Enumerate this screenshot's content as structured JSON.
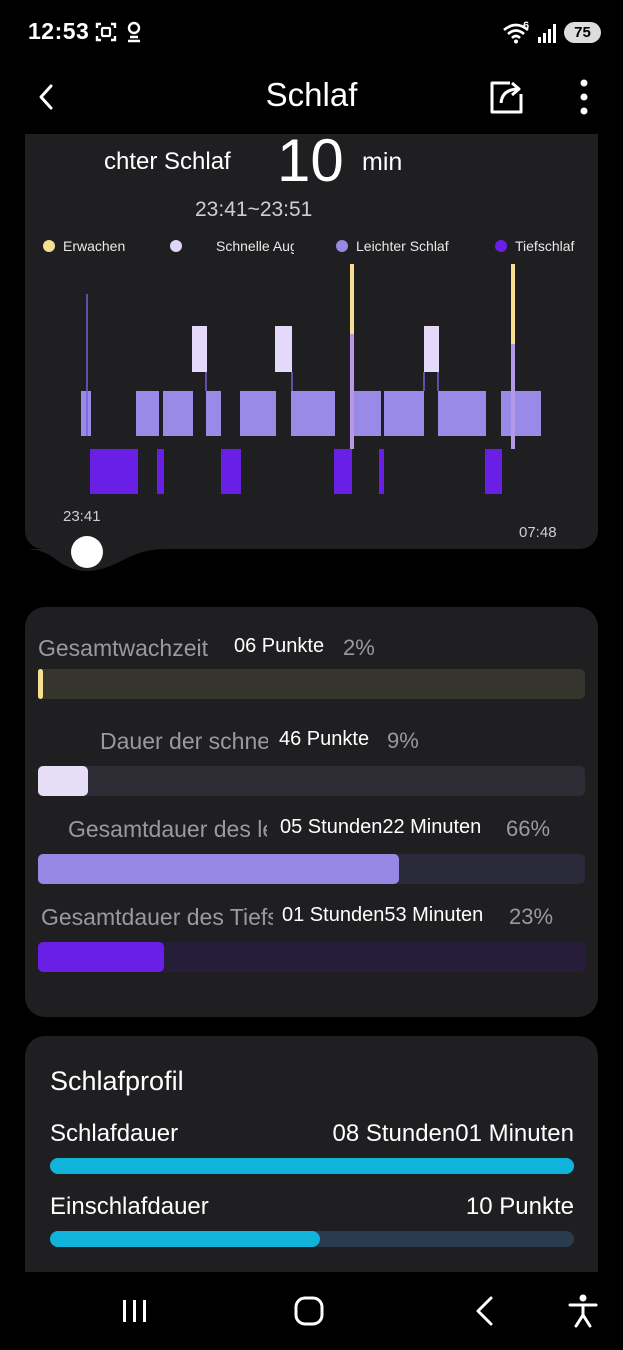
{
  "status_bar": {
    "time": "12:53",
    "wifi_badge": "6",
    "battery": "75",
    "icons": [
      "screenshot-icon",
      "profile-notification-icon",
      "wifi-icon",
      "signal-icon",
      "battery-icon"
    ]
  },
  "header": {
    "title": "Schlaf",
    "back_icon": "chevron-left-icon",
    "share_icon": "share-icon",
    "more_icon": "more-vertical-icon"
  },
  "stage_detail": {
    "label": "chter Schlaf",
    "value": "10",
    "unit": "min",
    "range": "23:41~23:51",
    "start_time": "23:41",
    "end_time": "07:48"
  },
  "legend": [
    {
      "label": "Erwachen",
      "color": "#f6df90"
    },
    {
      "label": "Schnelle Augenbewegung",
      "color": "#e2d6f8"
    },
    {
      "label": "Leichter Schlaf",
      "color": "#9888e6"
    },
    {
      "label": "Tiefschlaf",
      "color": "#6a1fe6"
    }
  ],
  "stages": [
    {
      "label": "Gesamtwachzeit",
      "value": "06 Punkte",
      "percent": "2%",
      "fraction": 0.02,
      "color": "#f6df90",
      "track_color": "#35352d"
    },
    {
      "label": "Dauer der schnellen Augenbewegung",
      "value": "46 Punkte",
      "percent": "9%",
      "fraction": 0.09,
      "color": "#e6ddf7",
      "track_color": "#2e2d36"
    },
    {
      "label": "Gesamtdauer des leichten Schlafs",
      "value": "05 Stunden22 Minuten",
      "percent": "66%",
      "fraction": 0.66,
      "color": "#9888e6",
      "track_color": "#2b2a3a"
    },
    {
      "label": "Gesamtdauer des Tiefschlafs",
      "value": "01 Stunden53 Minuten",
      "percent": "23%",
      "fraction": 0.23,
      "color": "#6a1fe6",
      "track_color": "#261d3a"
    }
  ],
  "profile": {
    "title": "Schlafprofil",
    "rows": [
      {
        "label": "Schlafdauer",
        "value": "08 Stunden01 Minuten",
        "fraction": 1.0
      },
      {
        "label": "Einschlafdauer",
        "value": "10 Punkte",
        "fraction": 0.52
      }
    ]
  },
  "nav": [
    "recents-icon",
    "home-icon",
    "back-icon",
    "accessibility-icon"
  ]
}
